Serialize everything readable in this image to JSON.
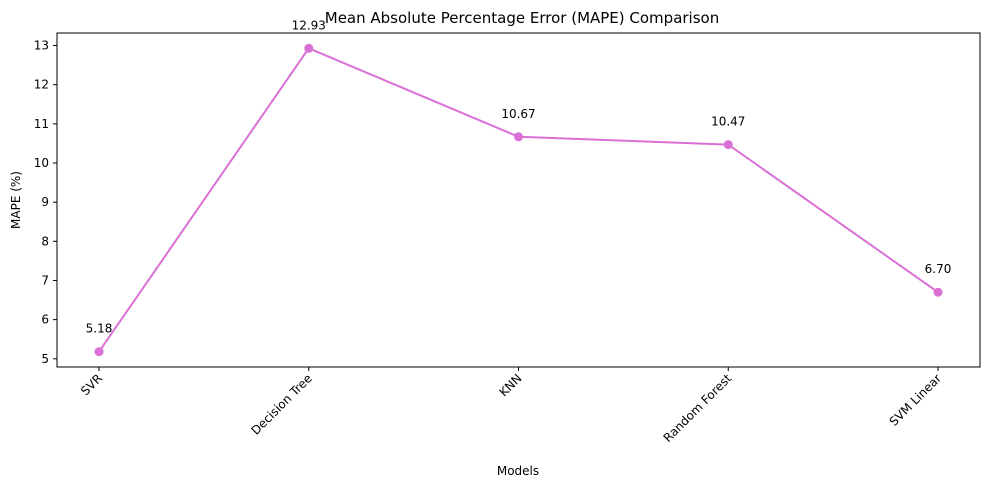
{
  "chart_data": {
    "type": "line",
    "title": "Mean Absolute Percentage Error (MAPE) Comparison",
    "xlabel": "Models",
    "ylabel": "MAPE (%)",
    "categories": [
      "SVR",
      "Decision Tree",
      "KNN",
      "Random Forest",
      "SVM Linear"
    ],
    "series": [
      {
        "values": [
          5.18,
          12.93,
          10.67,
          10.47,
          6.7
        ],
        "labels": [
          "5.18",
          "12.93",
          "10.67",
          "10.47",
          "6.70"
        ],
        "color": "#da70d6"
      }
    ],
    "ylim": [
      4.79,
      13.32
    ],
    "yticks": [
      5,
      6,
      7,
      8,
      9,
      10,
      11,
      12,
      13
    ],
    "grid": false,
    "marker": "circle"
  }
}
